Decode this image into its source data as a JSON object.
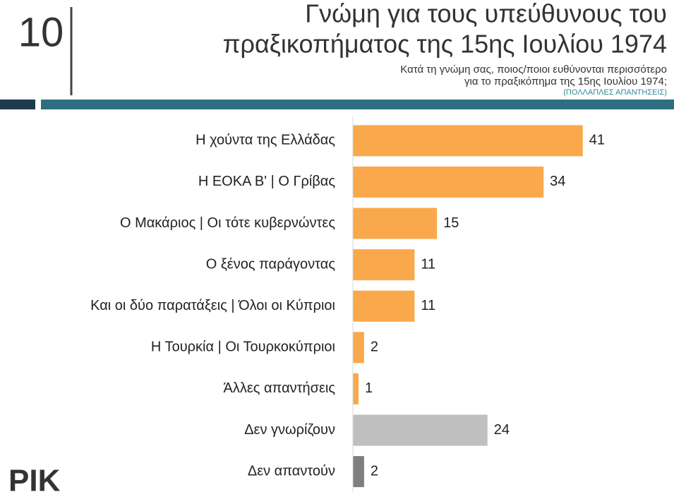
{
  "page_number": "10",
  "header": {
    "title_lines": [
      "Γνώμη για τους υπεύθυνους του",
      "πραξικοπήματος της 15ης Ιουλίου 1974"
    ],
    "subtitle_lines": [
      "Κατά τη γνώμη σας, ποιος/ποιοι ευθύνονται περισσότερο",
      "για το πραξικόπημα της 15ης Ιουλίου 1974;"
    ],
    "note": "(ΠΟΛΛΑΠΛΕΣ ΑΠΑΝΤΗΣΕΙΣ)"
  },
  "logo": "ΡΙΚ",
  "chart_data": {
    "type": "hbar",
    "categories": [
      "Η χούντα της Ελλάδας",
      "Η ΕΟΚΑ Β' | Ο Γρίβας",
      "Ο Μακάριος | Οι τότε κυβερνώντες",
      "Ο ξένος παράγοντας",
      "Και οι δύο παρατάξεις | Όλοι οι Κύπριοι",
      "Η Τουρκία | Οι Τουρκοκύπριοι",
      "Άλλες απαντήσεις",
      "Δεν γνωρίζουν",
      "Δεν απαντούν"
    ],
    "values": [
      41,
      34,
      15,
      11,
      11,
      2,
      1,
      24,
      2
    ],
    "colors": [
      "#f9a94b",
      "#f9a94b",
      "#f9a94b",
      "#f9a94b",
      "#f9a94b",
      "#f9a94b",
      "#f9a94b",
      "#bfbfbf",
      "#7f7f7f"
    ],
    "xlim": [
      0,
      56
    ]
  }
}
